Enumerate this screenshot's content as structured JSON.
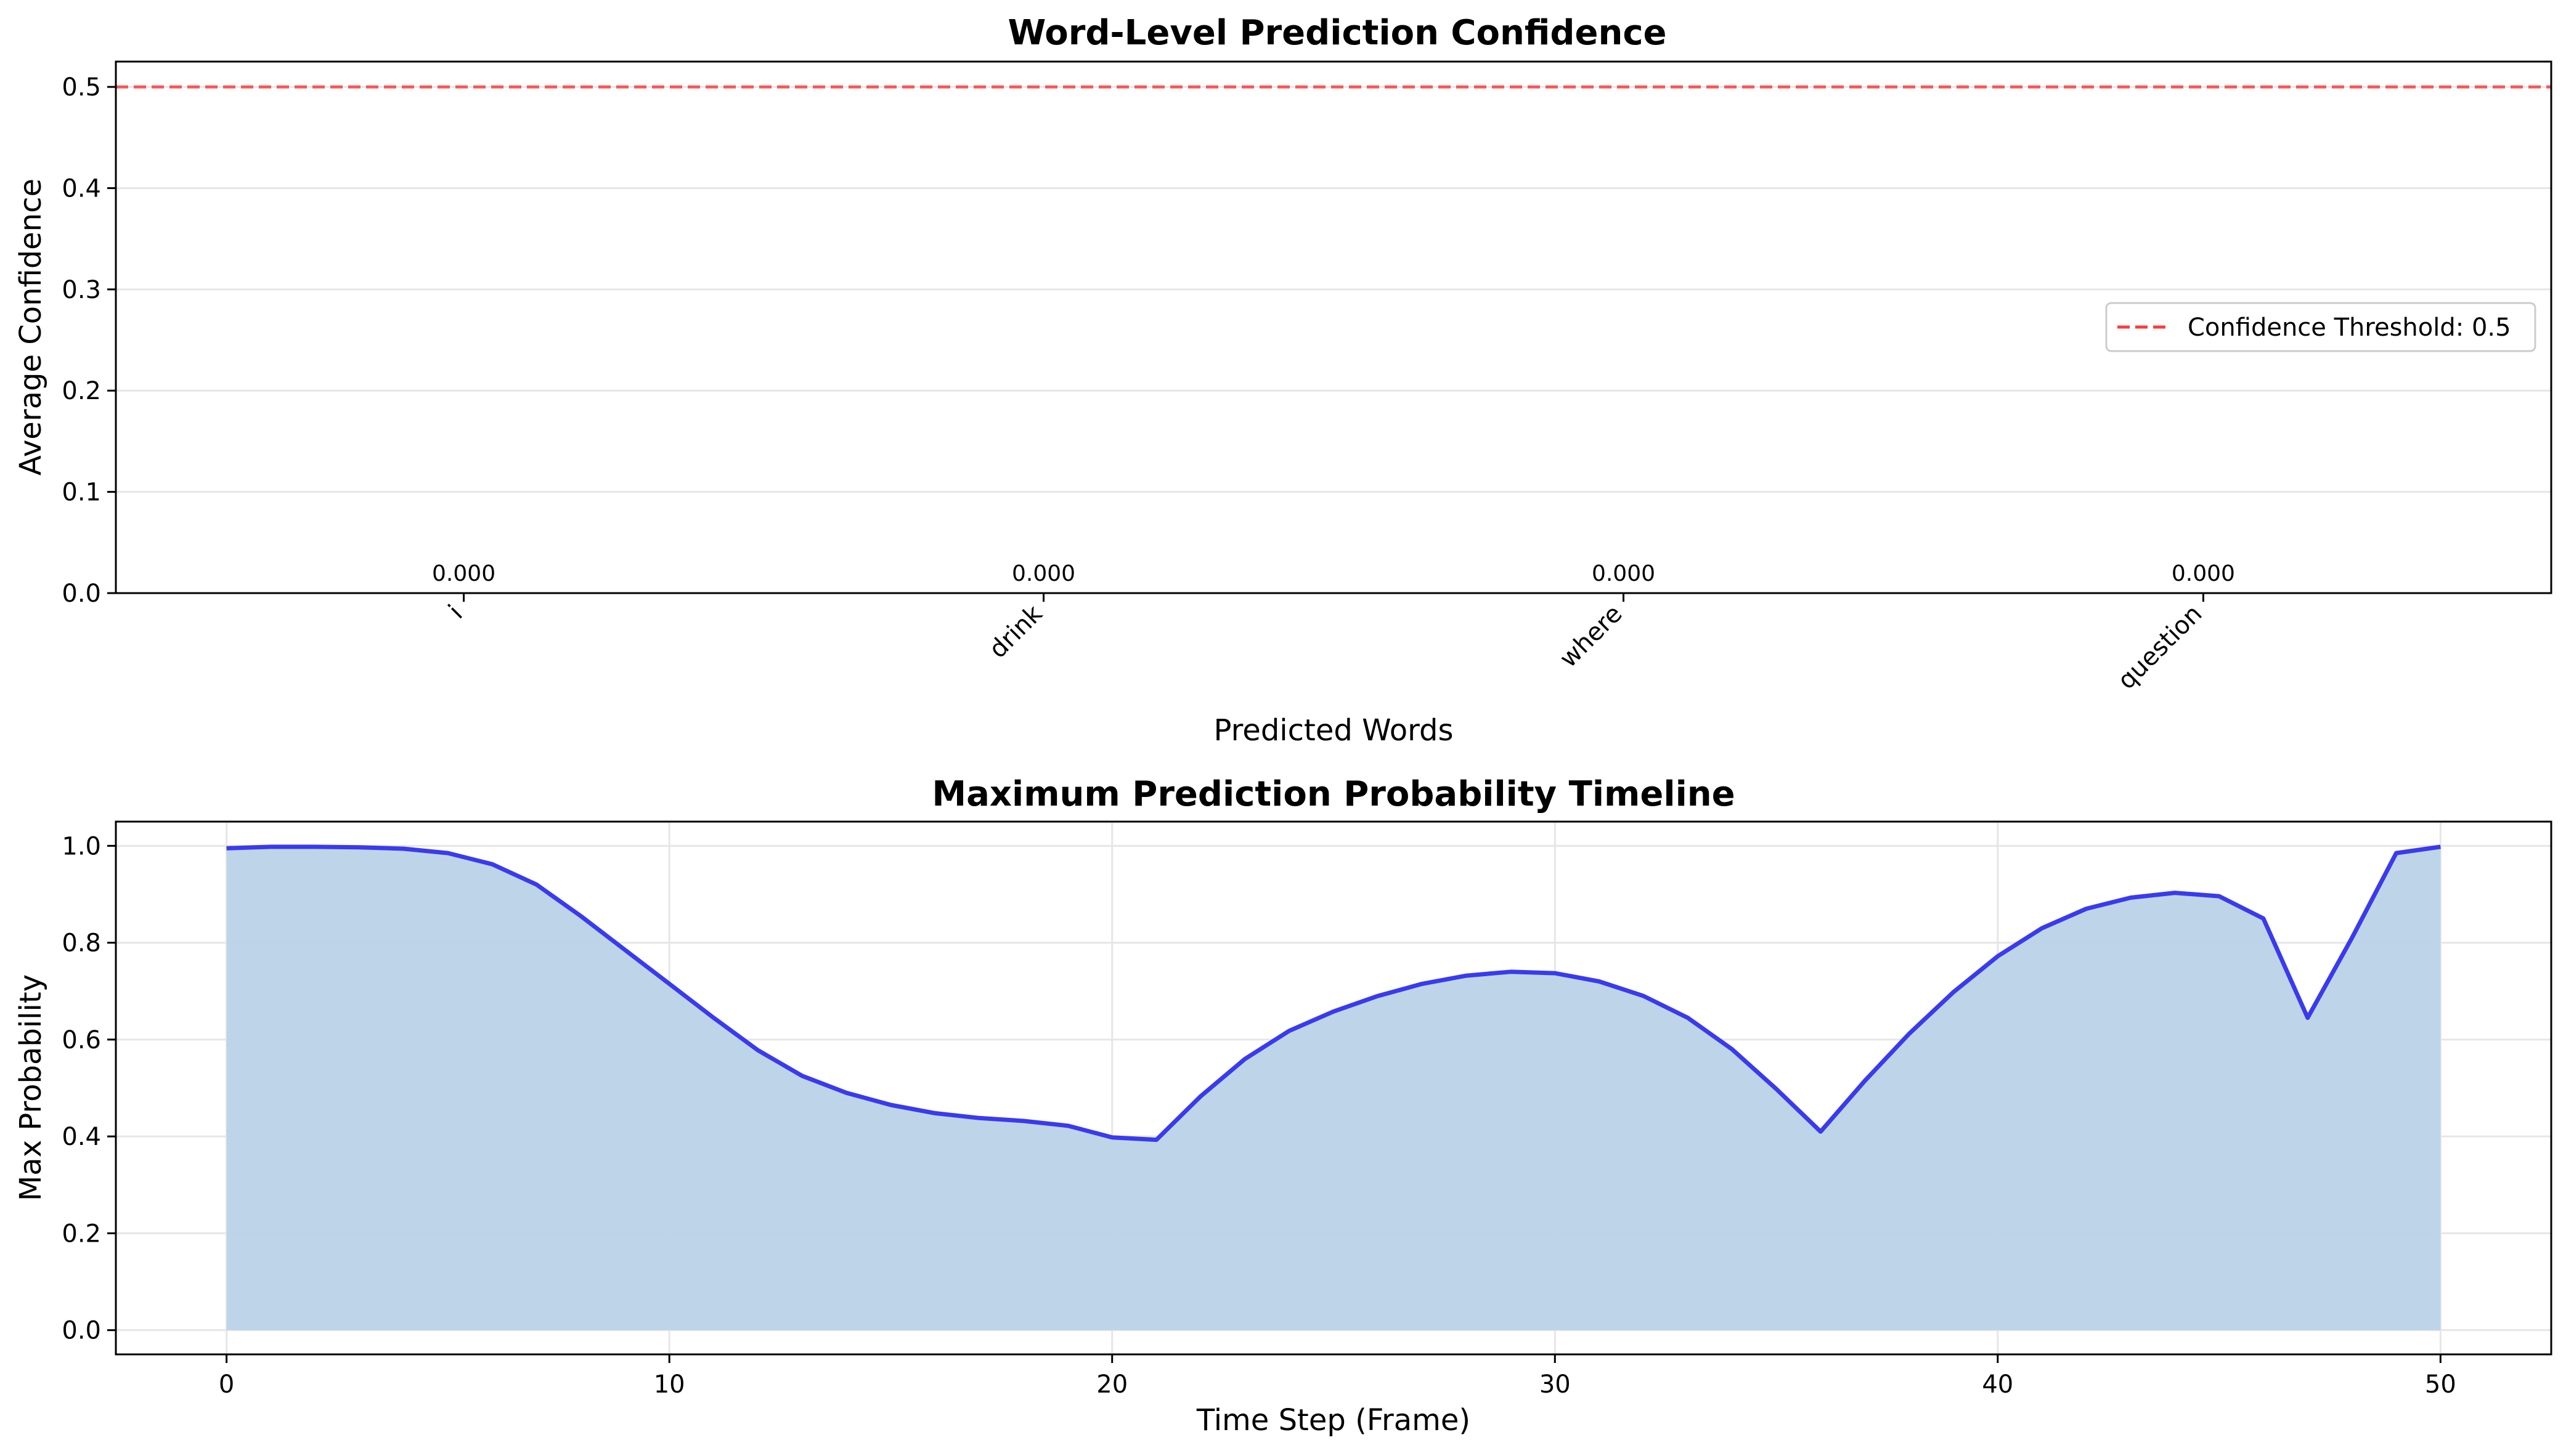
{
  "colors": {
    "threshold": "#ff3b3b",
    "line": "#3a3aee",
    "fill": "#bad3e8",
    "grid": "#e6e6e6"
  },
  "chart_data": [
    {
      "type": "bar",
      "title": "Word-Level Prediction Confidence",
      "xlabel": "Predicted Words",
      "ylabel": "Average Confidence",
      "categories": [
        "i",
        "drink",
        "where",
        "question"
      ],
      "values": [
        0.0,
        0.0,
        0.0,
        0.0
      ],
      "value_labels": [
        "0.000",
        "0.000",
        "0.000",
        "0.000"
      ],
      "ylim": [
        0,
        0.525
      ],
      "yticks": [
        0.0,
        0.1,
        0.2,
        0.3,
        0.4,
        0.5
      ],
      "ytick_labels": [
        "0.0",
        "0.1",
        "0.2",
        "0.3",
        "0.4",
        "0.5"
      ],
      "threshold": {
        "value": 0.5,
        "label": "Confidence Threshold: 0.5"
      },
      "legend_position": "center-right",
      "grid": "y"
    },
    {
      "type": "area",
      "title": "Maximum Prediction Probability Timeline",
      "xlabel": "Time Step (Frame)",
      "ylabel": "Max Probability",
      "x": [
        0,
        1,
        2,
        3,
        4,
        5,
        6,
        7,
        8,
        9,
        10,
        11,
        12,
        13,
        14,
        15,
        16,
        17,
        18,
        19,
        20,
        21,
        22,
        23,
        24,
        25,
        26,
        27,
        28,
        29,
        30,
        31,
        32,
        33,
        34,
        35,
        36,
        37,
        38,
        39,
        40,
        41,
        42,
        43,
        44,
        45,
        46,
        47,
        48,
        49,
        50
      ],
      "y": [
        0.995,
        0.998,
        0.998,
        0.997,
        0.994,
        0.985,
        0.962,
        0.92,
        0.855,
        0.785,
        0.715,
        0.645,
        0.578,
        0.525,
        0.49,
        0.465,
        0.448,
        0.438,
        0.432,
        0.422,
        0.398,
        0.393,
        0.483,
        0.56,
        0.618,
        0.658,
        0.69,
        0.715,
        0.732,
        0.74,
        0.737,
        0.72,
        0.69,
        0.645,
        0.58,
        0.498,
        0.41,
        0.515,
        0.612,
        0.698,
        0.772,
        0.83,
        0.87,
        0.893,
        0.903,
        0.896,
        0.85,
        0.645,
        0.81,
        0.985,
        0.998
      ],
      "xlim": [
        -2.5,
        52.5
      ],
      "ylim": [
        -0.05,
        1.05
      ],
      "xticks": [
        0,
        10,
        20,
        30,
        40,
        50
      ],
      "xtick_labels": [
        "0",
        "10",
        "20",
        "30",
        "40",
        "50"
      ],
      "yticks": [
        0.0,
        0.2,
        0.4,
        0.6,
        0.8,
        1.0
      ],
      "ytick_labels": [
        "0.0",
        "0.2",
        "0.4",
        "0.6",
        "0.8",
        "1.0"
      ],
      "grid": "both"
    }
  ]
}
